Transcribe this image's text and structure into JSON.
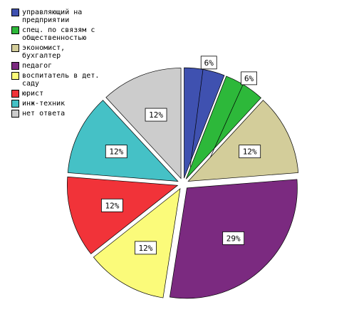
{
  "chart_data": {
    "type": "pie",
    "categories": [
      "управляющий на предприятии",
      "спец. по связям с общественностью",
      "экономист, бухгалтер",
      "педагог",
      "воспитатель в дет. саду",
      "юрист",
      "инж-техник",
      "нет ответа"
    ],
    "values": [
      6,
      6,
      12,
      29,
      12,
      12,
      12,
      12
    ],
    "value_labels": [
      "6%",
      "6%",
      "12%",
      "29%",
      "12%",
      "12%",
      "12%",
      "12%"
    ],
    "colors": [
      "#3f51b0",
      "#2db83a",
      "#d3cd9a",
      "#7b2a80",
      "#fbfb7a",
      "#f13339",
      "#45c1c6",
      "#cccccc"
    ]
  }
}
